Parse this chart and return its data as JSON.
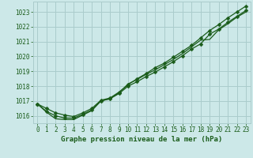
{
  "title": "Graphe pression niveau de la mer (hPa)",
  "background_color": "#cce8e8",
  "grid_color": "#aacccc",
  "line_color": "#1a5c1a",
  "marker_color": "#1a5c1a",
  "xlim": [
    -0.5,
    23.5
  ],
  "ylim": [
    1015.5,
    1023.7
  ],
  "yticks": [
    1016,
    1017,
    1018,
    1019,
    1020,
    1021,
    1022,
    1023
  ],
  "xticks": [
    0,
    1,
    2,
    3,
    4,
    5,
    6,
    7,
    8,
    9,
    10,
    11,
    12,
    13,
    14,
    15,
    16,
    17,
    18,
    19,
    20,
    21,
    22,
    23
  ],
  "series": [
    {
      "x": [
        0,
        1,
        2,
        3,
        4,
        5,
        6,
        7,
        8,
        9,
        10,
        11,
        12,
        13,
        14,
        15,
        16,
        17,
        18,
        19,
        20,
        21,
        22,
        23
      ],
      "y": [
        1016.8,
        1016.3,
        1016.0,
        1015.85,
        1015.85,
        1016.1,
        1016.4,
        1017.0,
        1017.15,
        1017.5,
        1018.0,
        1018.3,
        1018.65,
        1018.95,
        1019.3,
        1019.65,
        1020.05,
        1020.5,
        1020.85,
        1021.5,
        1021.85,
        1022.3,
        1022.7,
        1023.1
      ],
      "has_markers": true
    },
    {
      "x": [
        0,
        1,
        2,
        3,
        4,
        5,
        6,
        7,
        8,
        9,
        10,
        11,
        12,
        13,
        14,
        15,
        16,
        17,
        18,
        19,
        20,
        21,
        22,
        23
      ],
      "y": [
        1016.8,
        1016.25,
        1015.8,
        1015.75,
        1015.75,
        1016.05,
        1016.35,
        1017.0,
        1017.15,
        1017.55,
        1018.15,
        1018.45,
        1018.8,
        1019.1,
        1019.45,
        1019.8,
        1020.2,
        1020.65,
        1021.1,
        1021.15,
        1021.8,
        1022.2,
        1022.65,
        1023.0
      ],
      "has_markers": false
    },
    {
      "x": [
        0,
        1,
        2,
        3,
        4,
        5,
        6,
        7,
        8,
        9,
        10,
        11,
        12,
        13,
        14,
        15,
        16,
        17,
        18,
        19,
        20,
        21,
        22,
        23
      ],
      "y": [
        1016.8,
        1016.5,
        1016.2,
        1016.05,
        1015.95,
        1016.2,
        1016.5,
        1017.05,
        1017.2,
        1017.6,
        1018.1,
        1018.5,
        1018.85,
        1019.25,
        1019.55,
        1019.95,
        1020.35,
        1020.75,
        1021.25,
        1021.75,
        1022.15,
        1022.6,
        1023.0,
        1023.4
      ],
      "has_markers": true
    }
  ]
}
